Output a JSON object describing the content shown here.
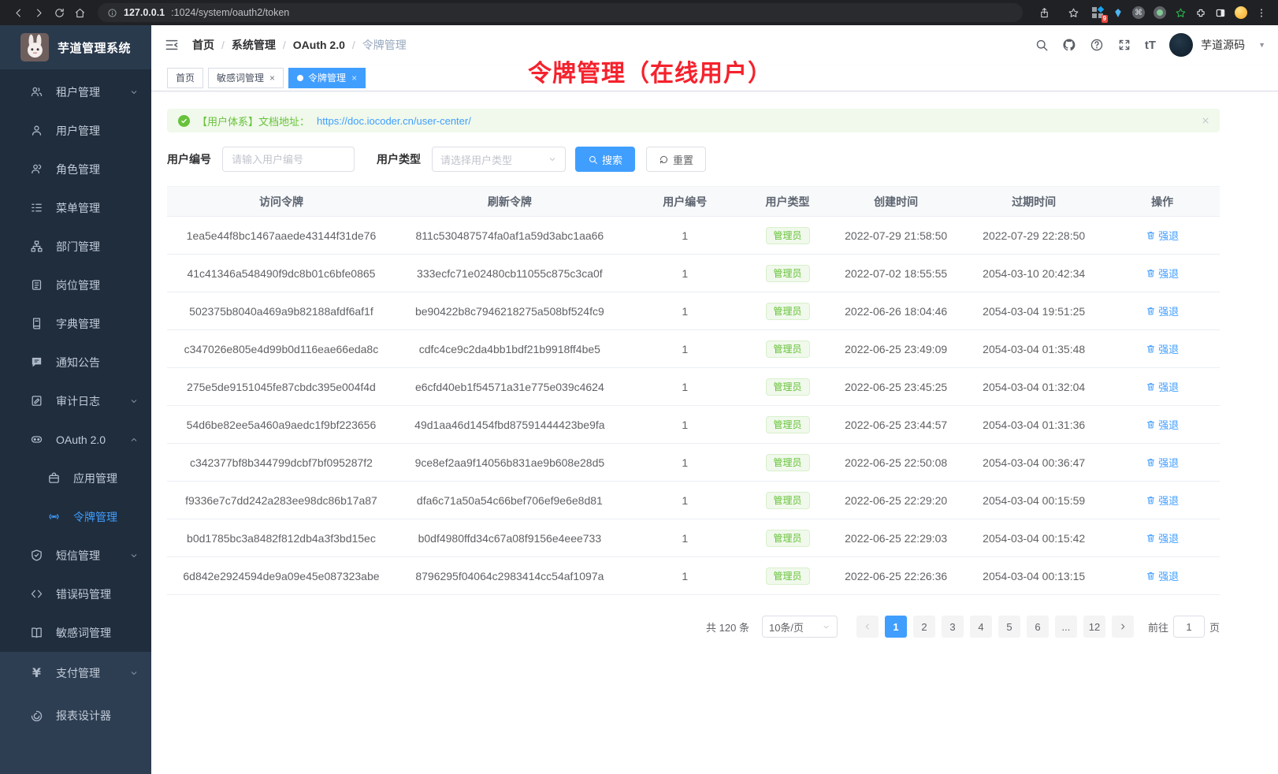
{
  "browser": {
    "url_host": "127.0.0.1",
    "url_rest": ":1024/system/oauth2/token",
    "extension_badge": "9"
  },
  "colors": {
    "accent": "#409eff",
    "success": "#67c23a",
    "annotation_red": "#f5222d",
    "sidebar_bg": "#1f2d3d"
  },
  "sidebar": {
    "app_title": "芋道管理系统",
    "items": [
      {
        "label": "租户管理",
        "icon": "users-icon",
        "chevron": "down"
      },
      {
        "label": "用户管理",
        "icon": "user-icon"
      },
      {
        "label": "角色管理",
        "icon": "role-icon"
      },
      {
        "label": "菜单管理",
        "icon": "menu-tree-icon"
      },
      {
        "label": "部门管理",
        "icon": "org-icon"
      },
      {
        "label": "岗位管理",
        "icon": "post-icon"
      },
      {
        "label": "字典管理",
        "icon": "dict-icon"
      },
      {
        "label": "通知公告",
        "icon": "notice-icon"
      },
      {
        "label": "审计日志",
        "icon": "log-icon",
        "chevron": "down"
      },
      {
        "label": "OAuth 2.0",
        "icon": "oauth-icon",
        "chevron": "up"
      },
      {
        "label": "应用管理",
        "icon": "app-icon",
        "sub": true
      },
      {
        "label": "令牌管理",
        "icon": "token-icon",
        "sub": true,
        "active": true
      },
      {
        "label": "短信管理",
        "icon": "sms-icon",
        "chevron": "down"
      },
      {
        "label": "错误码管理",
        "icon": "errcode-icon"
      },
      {
        "label": "敏感词管理",
        "icon": "sensitive-icon"
      },
      {
        "label": "支付管理",
        "icon": "pay-icon",
        "chevron": "down",
        "section": "bottom"
      },
      {
        "label": "报表设计器",
        "icon": "report-icon",
        "section": "bottom"
      }
    ]
  },
  "header": {
    "breadcrumb": [
      "首页",
      "系统管理",
      "OAuth 2.0",
      "令牌管理"
    ],
    "username": "芋道源码"
  },
  "annotation": "令牌管理（在线用户）",
  "tabs": [
    {
      "label": "首页",
      "closable": false,
      "active": false
    },
    {
      "label": "敏感词管理",
      "closable": true,
      "active": false
    },
    {
      "label": "令牌管理",
      "closable": true,
      "active": true
    }
  ],
  "alert": {
    "text": "【用户体系】文档地址：",
    "link": "https://doc.iocoder.cn/user-center/"
  },
  "filters": {
    "user_id_label": "用户编号",
    "user_id_placeholder": "请输入用户编号",
    "user_type_label": "用户类型",
    "user_type_placeholder": "请选择用户类型",
    "search_label": "搜索",
    "reset_label": "重置"
  },
  "table": {
    "columns": [
      "访问令牌",
      "刷新令牌",
      "用户编号",
      "用户类型",
      "创建时间",
      "过期时间",
      "操作"
    ],
    "action_label": "强退",
    "rows": [
      {
        "access": "1ea5e44f8bc1467aaede43144f31de76",
        "refresh": "811c530487574fa0af1a59d3abc1aa66",
        "user_id": "1",
        "user_type": "管理员",
        "created": "2022-07-29 21:58:50",
        "expires": "2022-07-29 22:28:50"
      },
      {
        "access": "41c41346a548490f9dc8b01c6bfe0865",
        "refresh": "333ecfc71e02480cb11055c875c3ca0f",
        "user_id": "1",
        "user_type": "管理员",
        "created": "2022-07-02 18:55:55",
        "expires": "2054-03-10 20:42:34"
      },
      {
        "access": "502375b8040a469a9b82188afdf6af1f",
        "refresh": "be90422b8c7946218275a508bf524fc9",
        "user_id": "1",
        "user_type": "管理员",
        "created": "2022-06-26 18:04:46",
        "expires": "2054-03-04 19:51:25"
      },
      {
        "access": "c347026e805e4d99b0d116eae66eda8c",
        "refresh": "cdfc4ce9c2da4bb1bdf21b9918ff4be5",
        "user_id": "1",
        "user_type": "管理员",
        "created": "2022-06-25 23:49:09",
        "expires": "2054-03-04 01:35:48"
      },
      {
        "access": "275e5de9151045fe87cbdc395e004f4d",
        "refresh": "e6cfd40eb1f54571a31e775e039c4624",
        "user_id": "1",
        "user_type": "管理员",
        "created": "2022-06-25 23:45:25",
        "expires": "2054-03-04 01:32:04"
      },
      {
        "access": "54d6be82ee5a460a9aedc1f9bf223656",
        "refresh": "49d1aa46d1454fbd87591444423be9fa",
        "user_id": "1",
        "user_type": "管理员",
        "created": "2022-06-25 23:44:57",
        "expires": "2054-03-04 01:31:36"
      },
      {
        "access": "c342377bf8b344799dcbf7bf095287f2",
        "refresh": "9ce8ef2aa9f14056b831ae9b608e28d5",
        "user_id": "1",
        "user_type": "管理员",
        "created": "2022-06-25 22:50:08",
        "expires": "2054-03-04 00:36:47"
      },
      {
        "access": "f9336e7c7dd242a283ee98dc86b17a87",
        "refresh": "dfa6c71a50a54c66bef706ef9e6e8d81",
        "user_id": "1",
        "user_type": "管理员",
        "created": "2022-06-25 22:29:20",
        "expires": "2054-03-04 00:15:59"
      },
      {
        "access": "b0d1785bc3a8482f812db4a3f3bd15ec",
        "refresh": "b0df4980ffd34c67a08f9156e4eee733",
        "user_id": "1",
        "user_type": "管理员",
        "created": "2022-06-25 22:29:03",
        "expires": "2054-03-04 00:15:42"
      },
      {
        "access": "6d842e2924594de9a09e45e087323abe",
        "refresh": "8796295f04064c2983414cc54af1097a",
        "user_id": "1",
        "user_type": "管理员",
        "created": "2022-06-25 22:26:36",
        "expires": "2054-03-04 00:13:15"
      }
    ]
  },
  "pagination": {
    "total": "共 120 条",
    "page_size": "10条/页",
    "pages": [
      "1",
      "2",
      "3",
      "4",
      "5",
      "6",
      "...",
      "12"
    ],
    "active_page": "1",
    "goto_label": "前往",
    "goto_value": "1",
    "goto_suffix": "页"
  }
}
